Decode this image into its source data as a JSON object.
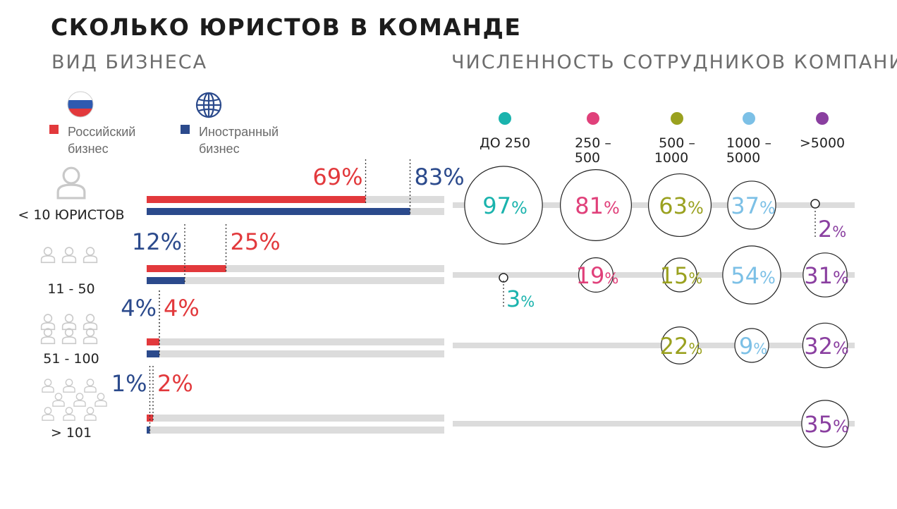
{
  "title": "СКОЛЬКО ЮРИСТОВ В КОМАНДЕ",
  "left_section_title": "ВИД БИЗНЕСА",
  "right_section_title": "ЧИСЛЕННОСТЬ СОТРУДНИКОВ КОМПАНИИ",
  "colors": {
    "russian": "#e2393c",
    "foreign": "#2b4a8c",
    "track": "#dcdcdc",
    "up_to_250": "#1ab3ad",
    "c250_500": "#e0407a",
    "c500_1000": "#9aa11f",
    "c1000_5000": "#7cc0e6",
    "over_5000": "#8a3fa0"
  },
  "chart_data": [
    {
      "type": "bar",
      "title": "ВИД БИЗНЕСА",
      "legend_placement": "top-left",
      "legend": [
        {
          "key": "russian",
          "icon": "russia-flag-icon",
          "label_line1": "Российский",
          "label_line2": "бизнес"
        },
        {
          "key": "foreign",
          "icon": "globe-icon",
          "label_line1": "Иностранный",
          "label_line2": "бизнес"
        }
      ],
      "categories": [
        {
          "label": "< 10 ЮРИСТОВ",
          "icon": "person-icon",
          "people": 1
        },
        {
          "label": "11 - 50",
          "icon": "people-group-icon",
          "people": 3
        },
        {
          "label": "51 - 100",
          "icon": "people-group-icon",
          "people": 6
        },
        {
          "label": "> 101",
          "icon": "people-group-icon",
          "people": 9
        }
      ],
      "series": [
        {
          "key": "russian",
          "values": [
            69,
            25,
            4,
            2
          ],
          "labels": [
            "69%",
            "25%",
            "4%",
            "2%"
          ]
        },
        {
          "key": "foreign",
          "values": [
            83,
            12,
            4,
            1
          ],
          "labels": [
            "83%",
            "12%",
            "4%",
            "1%"
          ]
        }
      ],
      "xlim": [
        0,
        100
      ]
    },
    {
      "type": "scatter",
      "title": "ЧИСЛЕННОСТЬ СОТРУДНИКОВ КОМПАНИИ",
      "columns": [
        {
          "key": "up_to_250",
          "line1": "ДО 250",
          "line2": ""
        },
        {
          "key": "c250_500",
          "line1": "250 –",
          "line2": "500"
        },
        {
          "key": "c500_1000",
          "line1": "500 –",
          "line2": "1000"
        },
        {
          "key": "c1000_5000",
          "line1": "1000 –",
          "line2": "5000"
        },
        {
          "key": "over_5000",
          "line1": ">5000",
          "line2": ""
        }
      ],
      "rows": [
        "< 10 ЮРИСТОВ",
        "11 - 50",
        "51 - 100",
        "> 101"
      ],
      "values": [
        [
          97,
          81,
          63,
          37,
          2
        ],
        [
          3,
          19,
          15,
          54,
          31
        ],
        [
          null,
          null,
          22,
          9,
          32
        ],
        [
          null,
          null,
          null,
          null,
          35
        ]
      ]
    }
  ]
}
